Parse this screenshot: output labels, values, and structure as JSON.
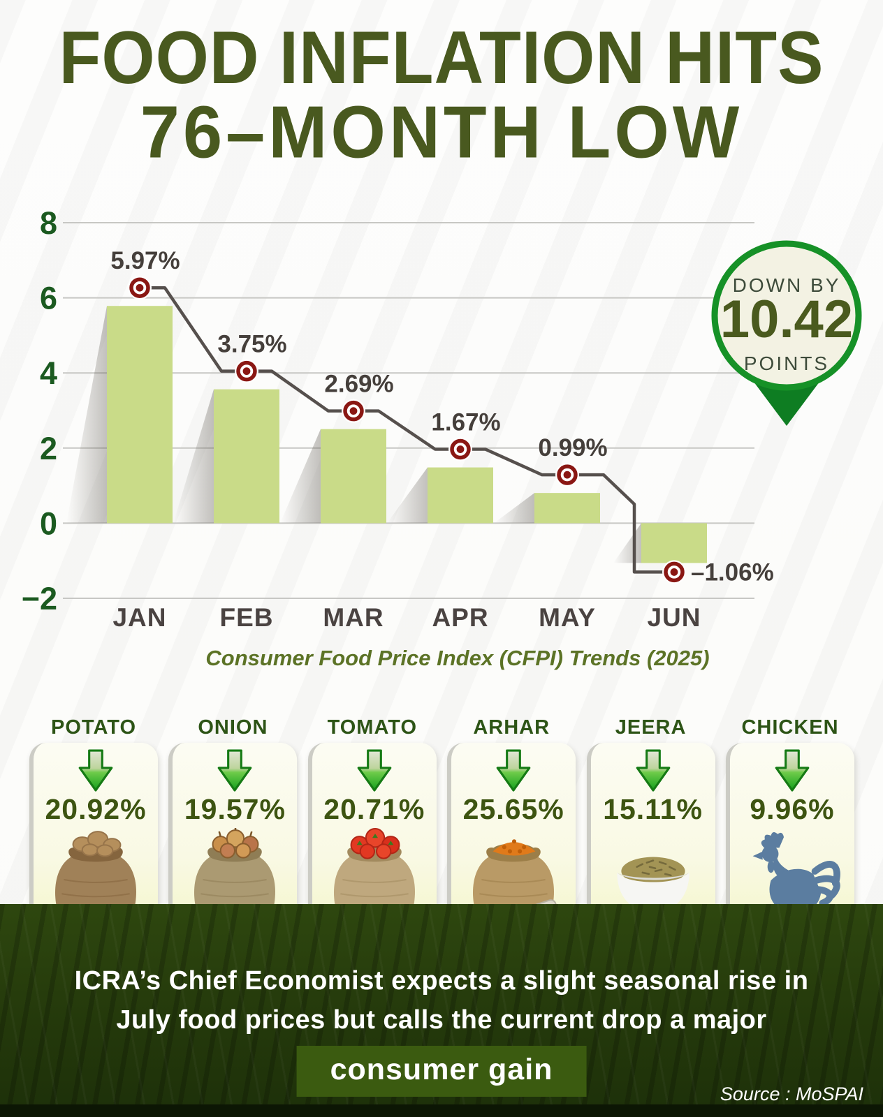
{
  "header": {
    "title_line1": "FOOD INFLATION HITS",
    "title_line2": "76–MONTH LOW"
  },
  "chart_data": {
    "type": "bar",
    "categories": [
      "JAN",
      "FEB",
      "MAR",
      "APR",
      "MAY",
      "JUN"
    ],
    "values": [
      5.97,
      3.75,
      2.69,
      1.67,
      0.99,
      -1.06
    ],
    "point_labels": [
      "5.97%",
      "3.75%",
      "2.69%",
      "1.67%",
      "0.99%",
      "–1.06%"
    ],
    "y_ticks": [
      8,
      6,
      4,
      2,
      0,
      -2
    ],
    "ylim": [
      -2,
      8
    ],
    "grid": true,
    "legend": "none",
    "title": "",
    "xlabel": "",
    "ylabel": "",
    "caption": "Consumer Food Price Index (CFPI) Trends (2025)",
    "bar_color": "#c9db88",
    "line_color": "#56504d",
    "marker_color": "#8a1713"
  },
  "badge": {
    "top": "DOWN BY",
    "value": "10.42",
    "bottom": "POINTS"
  },
  "commodities": [
    {
      "name": "POTATO",
      "change": "20.92%",
      "icon": "potato-sack"
    },
    {
      "name": "ONION",
      "change": "19.57%",
      "icon": "onion-sack"
    },
    {
      "name": "TOMATO",
      "change": "20.71%",
      "icon": "tomato-sack"
    },
    {
      "name": "ARHAR",
      "change": "25.65%",
      "icon": "arhar-sack"
    },
    {
      "name": "JEERA",
      "change": "15.11%",
      "icon": "jeera-bowl"
    },
    {
      "name": "CHICKEN",
      "change": "9.96%",
      "icon": "rooster"
    }
  ],
  "footer": {
    "line1": "ICRA’s Chief Economist expects a slight seasonal rise in",
    "line2": "July food prices but calls the current drop a major",
    "highlight": "consumer gain",
    "source": "Source : MoSPAI"
  },
  "colors": {
    "title_green": "#49591f",
    "axis_green": "#1b5a20",
    "bar_fill": "#c9db88",
    "marker_red": "#8a1713",
    "badge_border": "#169127",
    "badge_fill": "#f3f2e3",
    "card_bg": "#f9f9e4",
    "percent_green": "#3d5411",
    "footer_bg": "#2e470f",
    "highlight_bg": "#3b5b10",
    "rooster_blue": "#5b7da0"
  }
}
